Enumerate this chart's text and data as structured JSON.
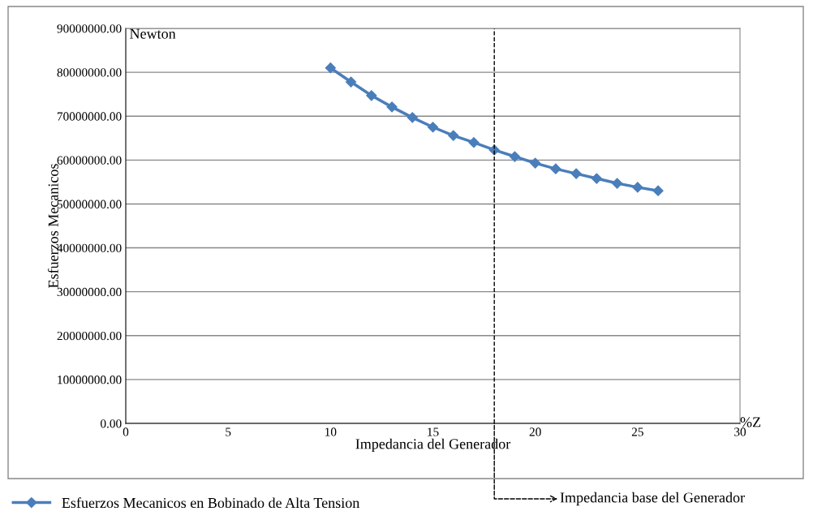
{
  "chart_data": {
    "type": "line",
    "xlabel": "Impedancia del Generador",
    "ylabel": "Esfuerzos Mecanicos",
    "annotations": [
      "Newton",
      "%Z"
    ],
    "x": [
      10,
      11,
      12,
      13,
      14,
      15,
      16,
      17,
      18,
      19,
      20,
      21,
      22,
      23,
      24,
      25,
      26
    ],
    "series": [
      {
        "name": "Esfuerzos Mecanicos en Bobinado de Alta Tension",
        "color": "#4a7ebb",
        "values": [
          81000000,
          77800000,
          74700000,
          72100000,
          69700000,
          67500000,
          65600000,
          64000000,
          62300000,
          60800000,
          59300000,
          58000000,
          56900000,
          55800000,
          54700000,
          53800000,
          53000000
        ]
      }
    ],
    "xlim": [
      0,
      30
    ],
    "xticks": [
      0,
      5,
      10,
      15,
      20,
      25,
      30
    ],
    "ylim": [
      0,
      90000000
    ],
    "yticks": [
      {
        "value": 0,
        "label": "0.00"
      },
      {
        "value": 10000000,
        "label": "10000000.00"
      },
      {
        "value": 20000000,
        "label": "20000000.00"
      },
      {
        "value": 30000000,
        "label": "30000000.00"
      },
      {
        "value": 40000000,
        "label": "40000000.00"
      },
      {
        "value": 50000000,
        "label": "50000000.00"
      },
      {
        "value": 60000000,
        "label": "60000000.00"
      },
      {
        "value": 70000000,
        "label": "70000000.00"
      },
      {
        "value": 80000000,
        "label": "80000000.00"
      },
      {
        "value": 90000000,
        "label": "90000000.00"
      }
    ],
    "ref_lines": [
      {
        "axis": "x",
        "value": 18,
        "label": "Impedancia base del Generador",
        "color": "#000000",
        "line_style": "dashed"
      }
    ],
    "grid": "y",
    "legend": "bottom left",
    "marker": "diamond",
    "line_style": "solid"
  }
}
